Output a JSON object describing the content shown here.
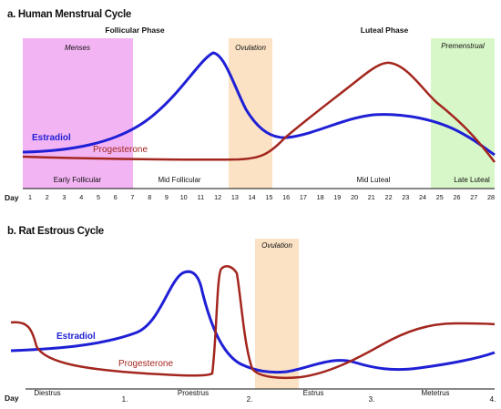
{
  "panel_a": {
    "title": "a. Human Menstrual Cycle",
    "phases": [
      "Follicular Phase",
      "Luteal Phase"
    ],
    "bands": [
      {
        "label": "Menses",
        "color": "#f3b4f3"
      },
      {
        "label": "Ovulation",
        "color": "#fbe2c4"
      },
      {
        "label": "Premenstrual",
        "color": "#d8f7c8"
      }
    ],
    "subphases": [
      "Early Follicular",
      "Mid Follicular",
      "Mid Luteal",
      "Late Luteal"
    ],
    "day_label": "Day",
    "days": [
      "1",
      "2",
      "3",
      "4",
      "5",
      "6",
      "7",
      "8",
      "9",
      "10",
      "11",
      "12",
      "13",
      "14",
      "15",
      "16",
      "17",
      "18",
      "19",
      "20",
      "21",
      "22",
      "23",
      "24",
      "25",
      "26",
      "27",
      "28"
    ],
    "estradiol_label": "Estradiol",
    "progesterone_label": "Progesterone"
  },
  "panel_b": {
    "title": "b. Rat Estrous Cycle",
    "ovulation_label": "Ovulation",
    "day_label": "Day",
    "day_ticks": [
      "1.",
      "2.",
      "3.",
      "4."
    ],
    "stages": [
      "Diestrus",
      "Proestrus",
      "Estrus",
      "Metetrus"
    ],
    "estradiol_label": "Estradiol",
    "progesterone_label": "Progesterone"
  },
  "colors": {
    "estradiol": "#1f1fd6",
    "progesterone": "#a3261e"
  }
}
